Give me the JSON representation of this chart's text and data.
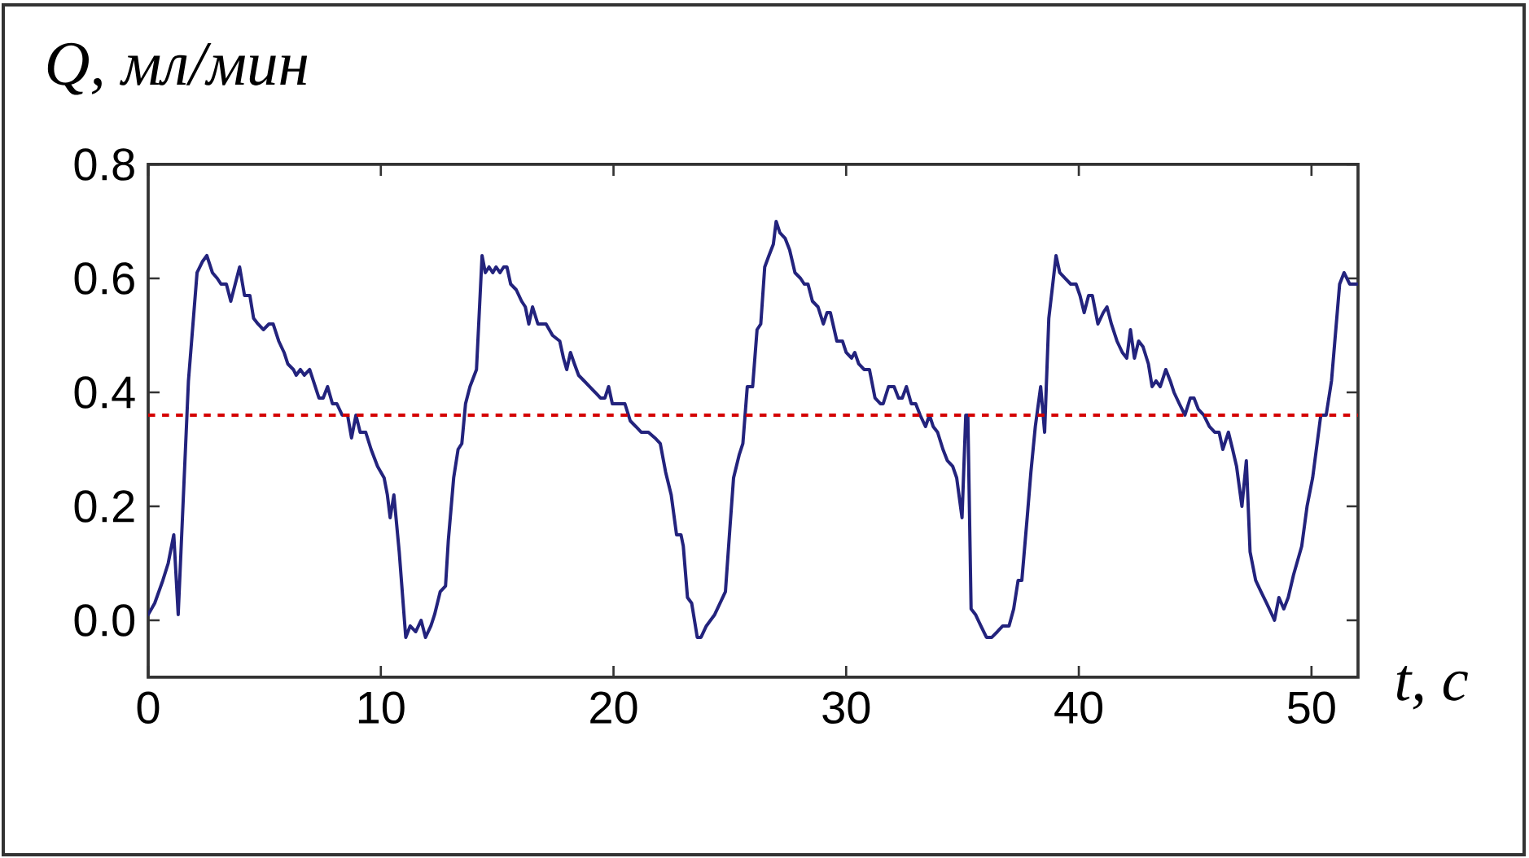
{
  "chart_data": {
    "type": "line",
    "xlabel": "t, с",
    "ylabel": "Q, мл/мин",
    "xlim": [
      0,
      52
    ],
    "ylim": [
      -0.1,
      0.8
    ],
    "xticks": [
      0,
      10,
      20,
      30,
      40,
      50
    ],
    "yticks": [
      {
        "value": 0,
        "label": "0.0"
      },
      0.2,
      0.4,
      0.6,
      0.8
    ],
    "series": [
      {
        "color": "#23237d",
        "x": [
          0,
          0.28,
          0.63,
          0.86,
          1.1,
          1.29,
          1.73,
          2.1,
          2.34,
          2.52,
          2.76,
          2.97,
          3.13,
          3.36,
          3.55,
          3.74,
          3.93,
          4.14,
          4.37,
          4.53,
          4.72,
          4.95,
          5.19,
          5.37,
          5.61,
          5.84,
          6.0,
          6.24,
          6.36,
          6.54,
          6.71,
          6.94,
          7.1,
          7.34,
          7.52,
          7.71,
          7.92,
          8.11,
          8.34,
          8.57,
          8.74,
          8.93,
          9.11,
          9.35,
          9.58,
          9.86,
          10.14,
          10.28,
          10.4,
          10.56,
          10.79,
          11.07,
          11.26,
          11.5,
          11.73,
          11.92,
          12.15,
          12.31,
          12.55,
          12.78,
          12.9,
          13.13,
          13.32,
          13.48,
          13.64,
          13.83,
          14.11,
          14.35,
          14.49,
          14.65,
          14.81,
          14.95,
          15.12,
          15.28,
          15.42,
          15.58,
          15.82,
          16.05,
          16.21,
          16.36,
          16.52,
          16.75,
          17.1,
          17.38,
          17.69,
          17.85,
          17.99,
          18.15,
          18.32,
          18.5,
          18.74,
          18.97,
          19.21,
          19.44,
          19.63,
          19.79,
          19.95,
          20.26,
          20.49,
          20.72,
          20.96,
          21.19,
          21.5,
          21.78,
          22.01,
          22.24,
          22.48,
          22.71,
          22.9,
          23.0,
          23.18,
          23.36,
          23.6,
          23.76,
          23.99,
          24.35,
          24.81,
          25.0,
          25.16,
          25.4,
          25.56,
          25.75,
          25.98,
          26.17,
          26.33,
          26.5,
          26.68,
          26.87,
          26.99,
          27.15,
          27.38,
          27.57,
          27.8,
          28.04,
          28.2,
          28.36,
          28.55,
          28.79,
          29.02,
          29.18,
          29.32,
          29.6,
          29.84,
          30.0,
          30.23,
          30.37,
          30.54,
          30.77,
          31.0,
          31.24,
          31.47,
          31.59,
          31.82,
          32.06,
          32.25,
          32.41,
          32.59,
          32.8,
          32.99,
          33.18,
          33.41,
          33.58,
          33.74,
          33.93,
          34.16,
          34.35,
          34.58,
          34.75,
          34.98,
          35.14,
          35.23,
          35.37,
          35.56,
          35.79,
          36.03,
          36.26,
          36.5,
          36.73,
          37.0,
          37.2,
          37.39,
          37.55,
          37.78,
          37.94,
          38.13,
          38.36,
          38.53,
          38.71,
          38.88,
          39.02,
          39.18,
          39.41,
          39.65,
          39.88,
          40.05,
          40.23,
          40.42,
          40.58,
          40.82,
          41.05,
          41.21,
          41.4,
          41.64,
          41.87,
          42.06,
          42.22,
          42.39,
          42.57,
          42.76,
          42.99,
          43.15,
          43.32,
          43.5,
          43.74,
          43.93,
          44.09,
          44.32,
          44.56,
          44.79,
          44.95,
          45.14,
          45.37,
          45.61,
          45.84,
          46.03,
          46.19,
          46.43,
          46.61,
          46.78,
          47.01,
          47.2,
          47.36,
          47.6,
          47.83,
          48.07,
          48.3,
          48.41,
          48.6,
          48.81,
          49.0,
          49.23,
          49.58,
          49.81,
          50.05,
          50.4,
          50.63,
          50.86,
          51.21,
          51.4,
          51.64,
          52.0
        ],
        "values": [
          0.01,
          0.03,
          0.07,
          0.1,
          0.15,
          0.01,
          0.42,
          0.61,
          0.63,
          0.64,
          0.61,
          0.6,
          0.59,
          0.59,
          0.56,
          0.59,
          0.62,
          0.57,
          0.57,
          0.53,
          0.52,
          0.51,
          0.52,
          0.52,
          0.49,
          0.47,
          0.45,
          0.44,
          0.43,
          0.44,
          0.43,
          0.44,
          0.42,
          0.39,
          0.39,
          0.41,
          0.38,
          0.38,
          0.36,
          0.36,
          0.32,
          0.36,
          0.33,
          0.33,
          0.3,
          0.27,
          0.25,
          0.22,
          0.18,
          0.22,
          0.12,
          -0.03,
          -0.01,
          -0.02,
          0.0,
          -0.03,
          -0.01,
          0.01,
          0.05,
          0.06,
          0.14,
          0.25,
          0.3,
          0.31,
          0.38,
          0.41,
          0.44,
          0.64,
          0.61,
          0.62,
          0.61,
          0.62,
          0.61,
          0.62,
          0.62,
          0.59,
          0.58,
          0.56,
          0.55,
          0.52,
          0.55,
          0.52,
          0.52,
          0.5,
          0.49,
          0.46,
          0.44,
          0.47,
          0.45,
          0.43,
          0.42,
          0.41,
          0.4,
          0.39,
          0.39,
          0.41,
          0.38,
          0.38,
          0.38,
          0.35,
          0.34,
          0.33,
          0.33,
          0.32,
          0.31,
          0.26,
          0.22,
          0.15,
          0.15,
          0.13,
          0.04,
          0.03,
          -0.03,
          -0.03,
          -0.01,
          0.01,
          0.05,
          0.16,
          0.25,
          0.29,
          0.31,
          0.41,
          0.41,
          0.51,
          0.52,
          0.62,
          0.64,
          0.66,
          0.7,
          0.68,
          0.67,
          0.65,
          0.61,
          0.6,
          0.59,
          0.59,
          0.56,
          0.55,
          0.52,
          0.54,
          0.54,
          0.49,
          0.49,
          0.47,
          0.46,
          0.47,
          0.45,
          0.44,
          0.44,
          0.39,
          0.38,
          0.38,
          0.41,
          0.41,
          0.39,
          0.39,
          0.41,
          0.38,
          0.38,
          0.36,
          0.34,
          0.36,
          0.34,
          0.33,
          0.3,
          0.28,
          0.27,
          0.25,
          0.18,
          0.36,
          0.36,
          0.02,
          0.01,
          -0.01,
          -0.03,
          -0.03,
          -0.02,
          -0.01,
          -0.01,
          0.02,
          0.07,
          0.07,
          0.18,
          0.26,
          0.34,
          0.41,
          0.33,
          0.53,
          0.59,
          0.64,
          0.61,
          0.6,
          0.59,
          0.59,
          0.57,
          0.54,
          0.57,
          0.57,
          0.52,
          0.54,
          0.55,
          0.52,
          0.49,
          0.47,
          0.46,
          0.51,
          0.46,
          0.49,
          0.48,
          0.45,
          0.41,
          0.42,
          0.41,
          0.44,
          0.42,
          0.4,
          0.38,
          0.36,
          0.39,
          0.39,
          0.37,
          0.36,
          0.34,
          0.33,
          0.33,
          0.3,
          0.33,
          0.3,
          0.27,
          0.2,
          0.28,
          0.12,
          0.07,
          0.05,
          0.03,
          0.01,
          0.0,
          0.04,
          0.02,
          0.04,
          0.08,
          0.13,
          0.2,
          0.25,
          0.36,
          0.36,
          0.42,
          0.59,
          0.61,
          0.59,
          0.59
        ]
      }
    ],
    "ref_lines": [
      {
        "axis": "y",
        "value": 0.36,
        "color": "#d40000",
        "line_style": "dashed"
      }
    ]
  }
}
